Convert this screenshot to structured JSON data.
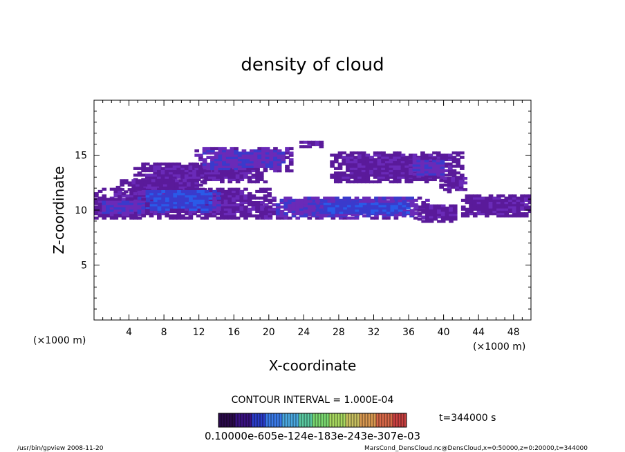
{
  "chart_data": {
    "type": "heatmap",
    "title": "density of cloud",
    "xlabel": "X-coordinate",
    "ylabel": "Z-coordinate",
    "x_unit_left": "(×1000 m)",
    "x_unit_right": "(×1000 m)",
    "xlim": [
      0,
      50
    ],
    "ylim": [
      0,
      20
    ],
    "x_ticks": [
      "4",
      "8",
      "12",
      "16",
      "20",
      "24",
      "28",
      "32",
      "36",
      "40",
      "44",
      "48"
    ],
    "y_ticks": [
      "5",
      "10",
      "15"
    ],
    "contour_interval": "CONTOUR INTERVAL = 1.000E-04",
    "time_label": "t=344000 s",
    "colorbar_labels": "0.10000e-605e-124e-183e-243e-307e-03",
    "colorbar_colors": [
      "#2a0a4a",
      "#3a1280",
      "#2a3cc8",
      "#3a7ae8",
      "#4aa8e0",
      "#5ac8a0",
      "#7ad870",
      "#a8d860",
      "#c8c060",
      "#d89850",
      "#d86848",
      "#c84040"
    ],
    "cloud_bands": [
      {
        "x": [
          4.5,
          19.5
        ],
        "z": [
          12.5,
          14.2
        ],
        "level": 1
      },
      {
        "x": [
          11.5,
          22.5
        ],
        "z": [
          13.5,
          15.6
        ],
        "level": 2
      },
      {
        "x": [
          2.5,
          12.5
        ],
        "z": [
          11.6,
          12.8
        ],
        "level": 1
      },
      {
        "x": [
          0,
          20
        ],
        "z": [
          9.2,
          12.0
        ],
        "level": 1
      },
      {
        "x": [
          5,
          14
        ],
        "z": [
          9.8,
          11.8
        ],
        "level": 3
      },
      {
        "x": [
          19,
          38
        ],
        "z": [
          9.2,
          11.2
        ],
        "level": 2
      },
      {
        "x": [
          24,
          37
        ],
        "z": [
          9.5,
          10.8
        ],
        "level": 3
      },
      {
        "x": [
          0,
          6
        ],
        "z": [
          9.5,
          11.0
        ],
        "level": 2
      },
      {
        "x": [
          37,
          41.5
        ],
        "z": [
          8.9,
          10.5
        ],
        "level": 1
      },
      {
        "x": [
          42,
          50
        ],
        "z": [
          9.4,
          11.3
        ],
        "level": 1
      },
      {
        "x": [
          27,
          42
        ],
        "z": [
          12.5,
          15.2
        ],
        "level": 1
      },
      {
        "x": [
          36,
          40
        ],
        "z": [
          13.0,
          14.7
        ],
        "level": 2
      },
      {
        "x": [
          23.5,
          26
        ],
        "z": [
          15.7,
          16.3
        ],
        "level": 1
      },
      {
        "x": [
          39.5,
          42.5
        ],
        "z": [
          11.6,
          13.0
        ],
        "level": 1
      }
    ]
  },
  "footer": {
    "left": "/usr/bin/gpview   2008-11-20",
    "right": "MarsCond_DensCloud.nc@DensCloud,x=0:50000,z=0:20000,t=344000"
  }
}
